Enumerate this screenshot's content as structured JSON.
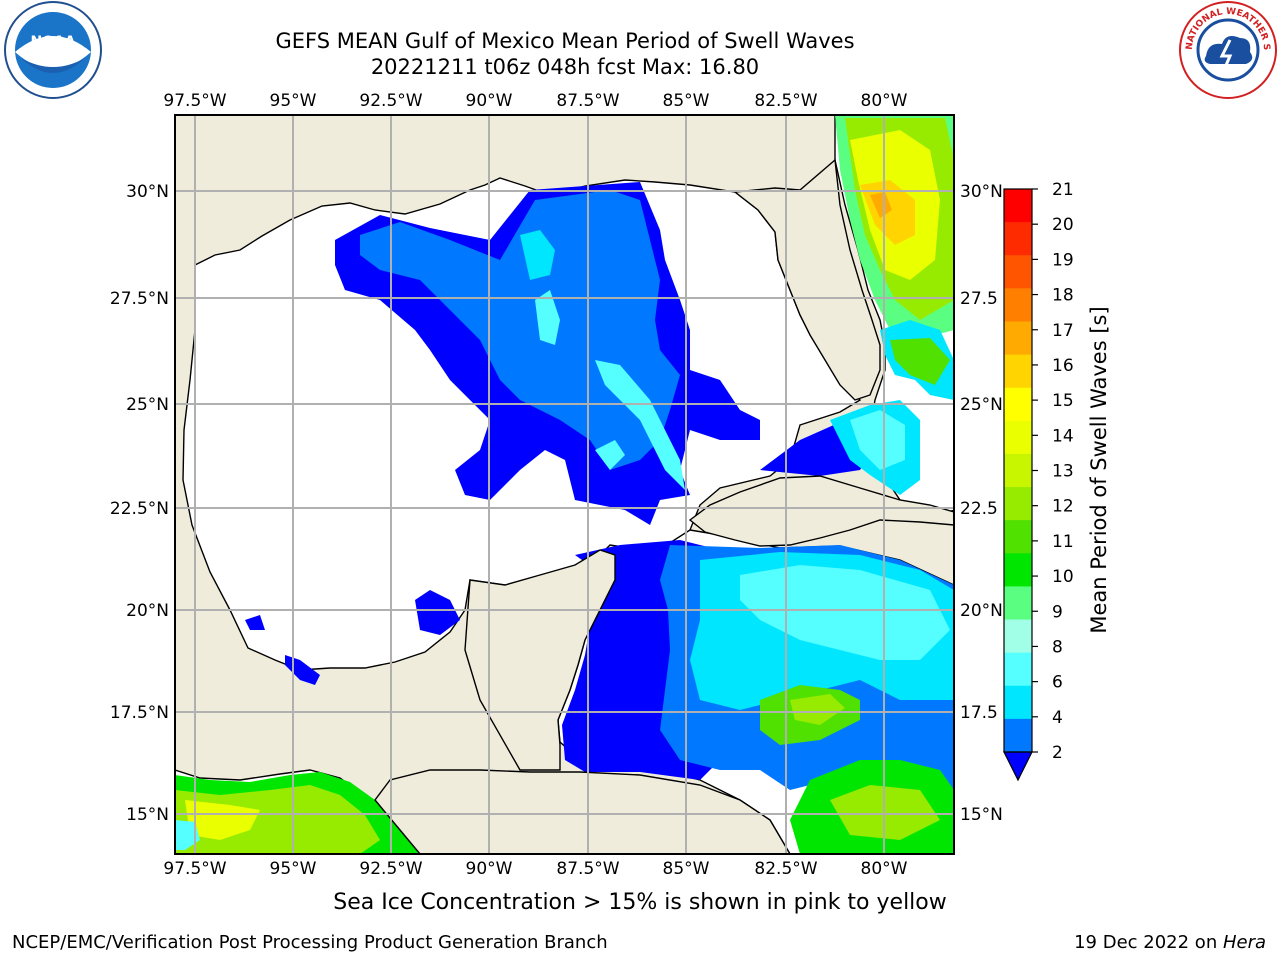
{
  "header": {
    "title_line1": "GEFS MEAN Gulf of Mexico Mean Period of Swell Waves",
    "title_line2": "20221211 t06z 048h fcst   Max: 16.80"
  },
  "logos": {
    "left": "noaa-logo",
    "right": "nws-logo",
    "left_text": "NOAA",
    "right_text": "NATIONAL WEATHER SERVICE"
  },
  "map": {
    "lon_labels": [
      "97.5°W",
      "95°W",
      "92.5°W",
      "90°W",
      "87.5°W",
      "85°W",
      "82.5°W",
      "80°W"
    ],
    "lat_labels_left": [
      "30°N",
      "27.5°N",
      "25°N",
      "22.5°N",
      "20°N",
      "17.5°N",
      "15°N"
    ],
    "lat_labels_right": [
      "30°N",
      "27.5",
      "25°N",
      "22.5",
      "20°N",
      "17.5",
      "15°N"
    ],
    "colors": {
      "land": "#efecdc",
      "ocean_nodata": "#ffffff",
      "grid": "#b0b0b0"
    }
  },
  "colorbar": {
    "label": "Mean Period of Swell Waves [s]",
    "ticks": [
      "21",
      "20",
      "19",
      "18",
      "17",
      "16",
      "15",
      "14",
      "13",
      "12",
      "11",
      "10",
      "9",
      "8",
      "6",
      "4",
      "2"
    ],
    "colors": [
      "#ff0000",
      "#ff2b00",
      "#ff5500",
      "#ff8000",
      "#ffaa00",
      "#ffd400",
      "#ffff00",
      "#eaff00",
      "#c8f500",
      "#96eb00",
      "#50e100",
      "#00e600",
      "#5aff82",
      "#a0ffe6",
      "#55ffff",
      "#00e6ff",
      "#0078ff"
    ],
    "extend_color": "#0000ff"
  },
  "footnote": "Sea Ice Concentration > 15% is shown in pink to yellow",
  "footer": {
    "left": "NCEP/EMC/Verification Post Processing Product Generation Branch",
    "right_date": "19 Dec 2022 on ",
    "right_host": "Hera"
  }
}
